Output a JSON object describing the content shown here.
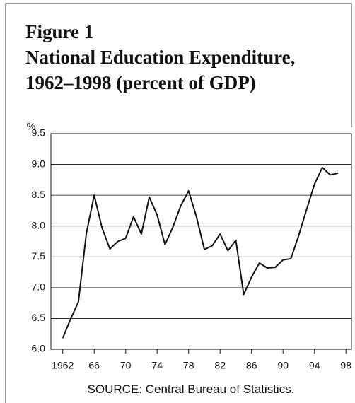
{
  "chart_data": {
    "type": "line",
    "title_lines": [
      "Figure 1",
      "National Education Expenditure,",
      "1962–1998 (percent of GDP)"
    ],
    "y_axis_label": "%",
    "source": "SOURCE: Central Bureau of Statistics.",
    "x": [
      1962,
      1963,
      1964,
      1965,
      1966,
      1967,
      1968,
      1969,
      1970,
      1971,
      1972,
      1973,
      1974,
      1975,
      1976,
      1977,
      1978,
      1979,
      1980,
      1981,
      1982,
      1983,
      1984,
      1985,
      1986,
      1987,
      1988,
      1989,
      1990,
      1991,
      1992,
      1993,
      1994,
      1995,
      1996,
      1997
    ],
    "series": [
      {
        "name": "National Education Expenditure",
        "color": "#111111",
        "values": [
          6.18,
          6.49,
          6.77,
          7.88,
          8.5,
          7.97,
          7.63,
          7.75,
          7.8,
          8.15,
          7.87,
          8.47,
          8.18,
          7.7,
          7.98,
          8.33,
          8.57,
          8.15,
          7.62,
          7.68,
          7.87,
          7.6,
          7.77,
          6.89,
          7.17,
          7.4,
          7.32,
          7.33,
          7.45,
          7.47,
          7.85,
          8.27,
          8.68,
          8.95,
          8.83,
          8.86
        ]
      }
    ],
    "xlim": [
      1960.5,
      1998.7
    ],
    "xticks": [
      1962,
      {
        "value": 1966,
        "label": "66"
      },
      {
        "value": 1970,
        "label": "70"
      },
      {
        "value": 1974,
        "label": "74"
      },
      {
        "value": 1978,
        "label": "78"
      },
      {
        "value": 1982,
        "label": "82"
      },
      {
        "value": 1986,
        "label": "86"
      },
      {
        "value": 1990,
        "label": "90"
      },
      {
        "value": 1994,
        "label": "94"
      },
      {
        "value": 1998,
        "label": "98"
      }
    ],
    "ylim": [
      6.0,
      9.5
    ],
    "yticks": [
      {
        "value": 6.0,
        "label": "6.0"
      },
      6.5,
      {
        "value": 7.0,
        "label": "7.0"
      },
      7.5,
      {
        "value": 8.0,
        "label": "8.0"
      },
      8.5,
      {
        "value": 9.0,
        "label": "9.0"
      },
      9.5
    ],
    "grid": true
  }
}
